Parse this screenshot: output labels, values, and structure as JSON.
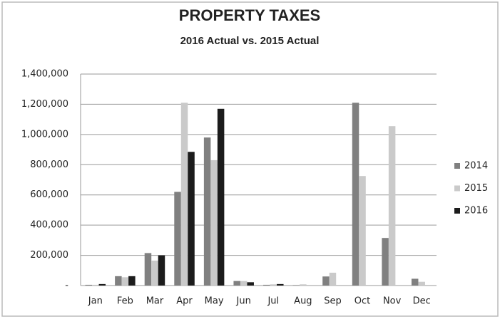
{
  "chart_data": {
    "type": "bar",
    "title": "PROPERTY TAXES",
    "subtitle": "2016 Actual  vs. 2015 Actual",
    "categories": [
      "Jan",
      "Feb",
      "Mar",
      "Apr",
      "May",
      "Jun",
      "Jul",
      "Aug",
      "Sep",
      "Oct",
      "Nov",
      "Dec"
    ],
    "series": [
      {
        "name": "2014",
        "color": "#808080",
        "values": [
          5000,
          62000,
          215000,
          620000,
          980000,
          30000,
          5000,
          3000,
          60000,
          1210000,
          315000,
          45000
        ]
      },
      {
        "name": "2015",
        "color": "#cacaca",
        "values": [
          5000,
          55000,
          165000,
          1210000,
          830000,
          30000,
          8000,
          8000,
          85000,
          725000,
          1055000,
          25000
        ]
      },
      {
        "name": "2016",
        "color": "#1c1c1c",
        "values": [
          10000,
          62000,
          200000,
          885000,
          1170000,
          22000,
          10000,
          null,
          null,
          null,
          null,
          null
        ]
      }
    ],
    "ylim": [
      0,
      1400000
    ],
    "yticks": [
      {
        "value": 0,
        "label": "-"
      },
      {
        "value": 200000,
        "label": "200,000"
      },
      {
        "value": 400000,
        "label": "400,000"
      },
      {
        "value": 600000,
        "label": "600,000"
      },
      {
        "value": 800000,
        "label": "800,000"
      },
      {
        "value": 1000000,
        "label": "1,000,000"
      },
      {
        "value": 1200000,
        "label": "1,200,000"
      },
      {
        "value": 1400000,
        "label": "1,400,000"
      }
    ],
    "grid": true,
    "legend": "right"
  }
}
